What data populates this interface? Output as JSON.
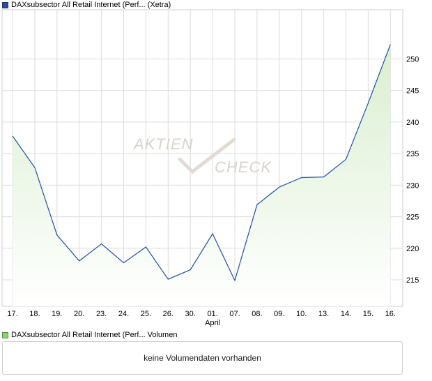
{
  "legend": {
    "price_label": "DAXsubsector All Retail Internet (Perf... (Xetra)",
    "volume_label": "DAXsubsector All Retail Internet (Perf... Volumen"
  },
  "watermark": {
    "line1": "AKTIEN",
    "line2": "CHECK"
  },
  "volume_panel": {
    "message": "keine Volumendaten vorhanden"
  },
  "colors": {
    "line": "#1f4fa8",
    "fill_top": "#d9efcf",
    "fill_bottom": "#ffffff",
    "grid": "#dcdcdc"
  },
  "chart_data": {
    "type": "area",
    "title": "",
    "xlabel": "",
    "ylabel": "",
    "x": [
      "17.",
      "18.",
      "19.",
      "20.",
      "23.",
      "24.",
      "25.",
      "26.",
      "30.",
      "01.",
      "07.",
      "08.",
      "09.",
      "10.",
      "13.",
      "14.",
      "15.",
      "16."
    ],
    "x_sublabels": {
      "01.": "April"
    },
    "series": [
      {
        "values": [
          237.8,
          232.8,
          222.1,
          218.0,
          220.7,
          217.7,
          220.2,
          215.1,
          216.6,
          222.3,
          214.9,
          226.9,
          229.7,
          231.2,
          231.3,
          234.1,
          243.0,
          252.3
        ]
      }
    ],
    "yticks": [
      215,
      220,
      225,
      230,
      235,
      240,
      245,
      250
    ],
    "ylim": [
      210.8,
      257.8
    ],
    "grid": true,
    "y_axis_position": "right"
  }
}
